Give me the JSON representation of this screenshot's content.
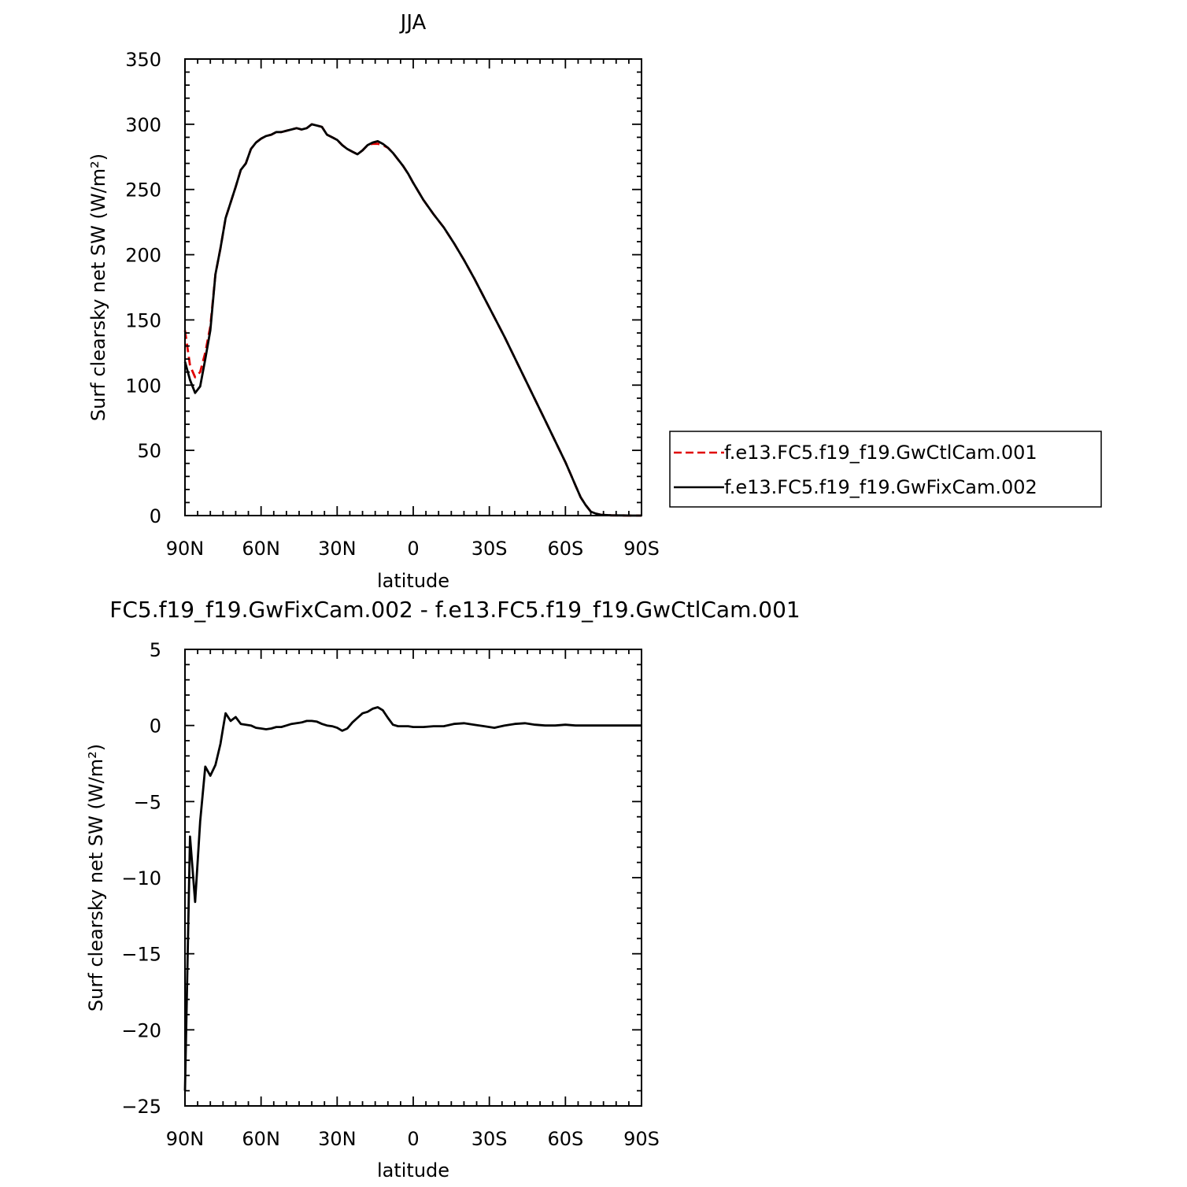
{
  "chart_data": [
    {
      "type": "line",
      "title": "JJA",
      "xlabel": "latitude",
      "ylabel": "Surf clearsky net SW (W/m²)",
      "xlim": [
        90,
        -90
      ],
      "ylim": [
        0,
        350
      ],
      "x_ticks": [
        90,
        60,
        30,
        0,
        -30,
        -60,
        -90
      ],
      "x_tick_labels": [
        "90N",
        "60N",
        "30N",
        "0",
        "30S",
        "60S",
        "90S"
      ],
      "y_ticks": [
        0,
        50,
        100,
        150,
        200,
        250,
        300,
        350
      ],
      "y_tick_labels": [
        "0",
        "50",
        "100",
        "150",
        "200",
        "250",
        "300",
        "350"
      ],
      "grid": false,
      "legend": {
        "position": "outside-right",
        "entries": [
          "f.e13.FC5.f19_f19.GwCtlCam.001",
          "f.e13.FC5.f19_f19.GwFixCam.002"
        ]
      },
      "series": [
        {
          "name": "f.e13.FC5.f19_f19.GwCtlCam.001",
          "color": "#e00000",
          "dash": "dashed",
          "x": [
            90,
            88,
            86,
            84,
            82,
            80,
            78,
            76,
            74,
            72,
            70,
            68,
            66,
            64,
            62,
            60,
            58,
            56,
            54,
            52,
            50,
            48,
            46,
            44,
            42,
            40,
            38,
            36,
            34,
            32,
            30,
            28,
            26,
            24,
            22,
            20,
            18,
            16,
            14,
            12,
            10,
            8,
            6,
            4,
            2,
            0,
            -4,
            -8,
            -12,
            -16,
            -20,
            -24,
            -28,
            -32,
            -36,
            -40,
            -44,
            -48,
            -52,
            -56,
            -60,
            -62,
            -64,
            -66,
            -68,
            -70,
            -72,
            -74,
            -78,
            -82,
            -86,
            -90
          ],
          "y": [
            142,
            115,
            106,
            110,
            125,
            145,
            185,
            205,
            228,
            240,
            252,
            265,
            270,
            281,
            286,
            289,
            291,
            292,
            294,
            294,
            295,
            296,
            297,
            296,
            297,
            300,
            299,
            298,
            292,
            290,
            288,
            284,
            281,
            279,
            277,
            280,
            284,
            285,
            285,
            284,
            282,
            278,
            273,
            268,
            262,
            255,
            242,
            231,
            221,
            209,
            196,
            182,
            167,
            152,
            137,
            121,
            105,
            89,
            73,
            57,
            41,
            32,
            23,
            14,
            8,
            3,
            1.5,
            0.6,
            0.2,
            0.1,
            0,
            0
          ]
        },
        {
          "name": "f.e13.FC5.f19_f19.GwFixCam.002",
          "color": "#000000",
          "dash": "solid",
          "x": [
            90,
            88,
            86,
            84,
            82,
            80,
            78,
            76,
            74,
            72,
            70,
            68,
            66,
            64,
            62,
            60,
            58,
            56,
            54,
            52,
            50,
            48,
            46,
            44,
            42,
            40,
            38,
            36,
            34,
            32,
            30,
            28,
            26,
            24,
            22,
            20,
            18,
            16,
            14,
            12,
            10,
            8,
            6,
            4,
            2,
            0,
            -4,
            -8,
            -12,
            -16,
            -20,
            -24,
            -28,
            -32,
            -36,
            -40,
            -44,
            -48,
            -52,
            -56,
            -60,
            -62,
            -64,
            -66,
            -68,
            -70,
            -72,
            -74,
            -78,
            -82,
            -86,
            -90
          ],
          "y": [
            118,
            104,
            94,
            99,
            120,
            142,
            185,
            205,
            228,
            240,
            252,
            265,
            270,
            281,
            286,
            289,
            291,
            292,
            294,
            294,
            295,
            296,
            297,
            296,
            297,
            300,
            299,
            298,
            292,
            290,
            288,
            284,
            281,
            279,
            277,
            280,
            284,
            286,
            287,
            285,
            282,
            278,
            273,
            268,
            262,
            255,
            242,
            231,
            221,
            209,
            196,
            182,
            167,
            152,
            137,
            121,
            105,
            89,
            73,
            57,
            41,
            32,
            23,
            14,
            8,
            3,
            1.5,
            0.6,
            0.2,
            0.1,
            0,
            0
          ]
        }
      ]
    },
    {
      "type": "line",
      "title": "FC5.f19_f19.GwFixCam.002 - f.e13.FC5.f19_f19.GwCtlCam.001",
      "xlabel": "latitude",
      "ylabel": "Surf clearsky net SW (W/m²)",
      "xlim": [
        90,
        -90
      ],
      "ylim": [
        -25,
        5
      ],
      "x_ticks": [
        90,
        60,
        30,
        0,
        -30,
        -60,
        -90
      ],
      "x_tick_labels": [
        "90N",
        "60N",
        "30N",
        "0",
        "30S",
        "60S",
        "90S"
      ],
      "y_ticks": [
        5,
        0,
        -5,
        -10,
        -15,
        -20,
        -25
      ],
      "y_tick_labels": [
        "5",
        "0",
        "−5",
        "−10",
        "−15",
        "−20",
        "−25"
      ],
      "grid": false,
      "series": [
        {
          "color": "#000000",
          "dash": "solid",
          "x": [
            90,
            88,
            86,
            84,
            82,
            80,
            78,
            76,
            75,
            74,
            72,
            70,
            68,
            66,
            64,
            62,
            60,
            58,
            56,
            54,
            52,
            50,
            48,
            46,
            44,
            42,
            40,
            38,
            36,
            34,
            32,
            30,
            28,
            26,
            24,
            22,
            20,
            18,
            16,
            14,
            12,
            10,
            8,
            6,
            4,
            2,
            0,
            -4,
            -8,
            -12,
            -16,
            -20,
            -24,
            -28,
            -32,
            -36,
            -40,
            -44,
            -48,
            -52,
            -56,
            -60,
            -64,
            -70,
            -80,
            -90
          ],
          "y": [
            -24,
            -7.3,
            -11.6,
            -6.3,
            -2.7,
            -3.3,
            -2.6,
            -1.2,
            -0.2,
            0.8,
            0.3,
            0.55,
            0.1,
            0.05,
            0,
            -0.15,
            -0.2,
            -0.25,
            -0.2,
            -0.1,
            -0.1,
            0,
            0.1,
            0.15,
            0.2,
            0.3,
            0.3,
            0.25,
            0.1,
            0,
            -0.05,
            -0.15,
            -0.35,
            -0.2,
            0.2,
            0.5,
            0.8,
            0.9,
            1.1,
            1.2,
            1.0,
            0.5,
            0.05,
            -0.05,
            -0.05,
            -0.05,
            -0.1,
            -0.1,
            -0.05,
            -0.05,
            0.1,
            0.15,
            0.05,
            -0.05,
            -0.15,
            0,
            0.1,
            0.15,
            0.05,
            0,
            0,
            0.05,
            0,
            0,
            0,
            0
          ]
        }
      ]
    }
  ]
}
